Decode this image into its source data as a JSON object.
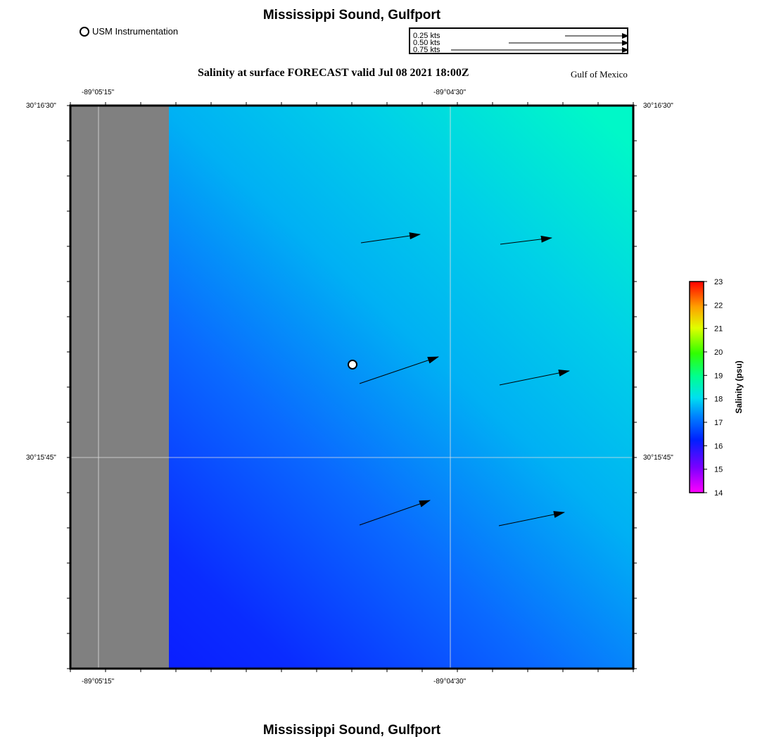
{
  "title": "Mississippi Sound, Gulfport",
  "footer_title": "Mississippi Sound, Gulfport",
  "station_legend": "USM Instrumentation",
  "speed_legend": [
    "0.25 kts",
    "0.50 kts",
    "0.75 kts"
  ],
  "subtitle": "Salinity at surface FORECAST valid Jul 08 2021 18:00Z",
  "region": "Gulf of Mexico",
  "axes": {
    "lon_labels": [
      "-89°05'15\"",
      "-89°04'30\""
    ],
    "lat_labels": [
      "30°16'30\"",
      "30°15'45\""
    ]
  },
  "colorbar": {
    "label": "Salinity (psu)",
    "ticks": [
      "23",
      "22",
      "21",
      "20",
      "19",
      "18",
      "17",
      "16",
      "15",
      "14"
    ]
  },
  "colors": {
    "land": "#808080",
    "water_top_right": "#00f8c8",
    "water_mid": "#00c0f0",
    "water_bottom": "#0a14ff"
  }
}
